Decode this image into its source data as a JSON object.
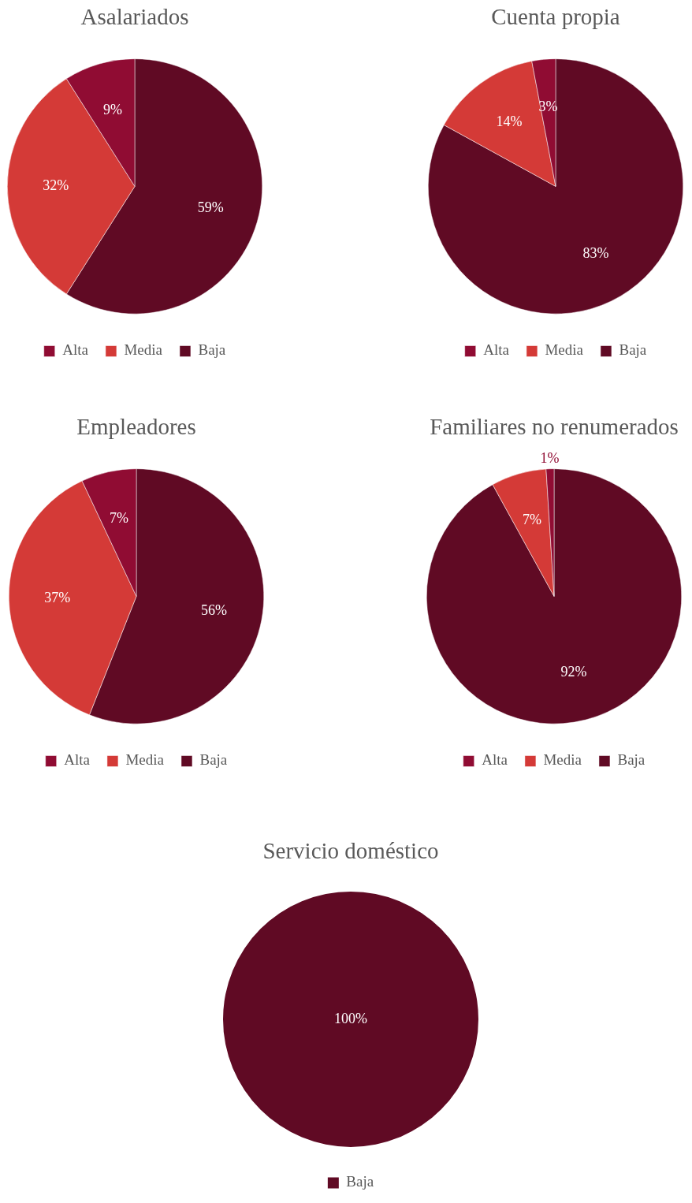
{
  "chart_data": [
    {
      "type": "pie",
      "title": "Asalariados",
      "categories": [
        "Alta",
        "Media",
        "Baja"
      ],
      "values": [
        9,
        32,
        59
      ],
      "colors": [
        "#900c33",
        "#d43a37",
        "#600a24"
      ],
      "value_labels": [
        "9%",
        "32%",
        "59%"
      ],
      "legend": "bottom"
    },
    {
      "type": "pie",
      "title": "Cuenta propia",
      "categories": [
        "Alta",
        "Media",
        "Baja"
      ],
      "values": [
        3,
        14,
        83
      ],
      "colors": [
        "#900c33",
        "#d43a37",
        "#600a24"
      ],
      "value_labels": [
        "3%",
        "14%",
        "83%"
      ],
      "legend": "bottom"
    },
    {
      "type": "pie",
      "title": "Empleadores",
      "categories": [
        "Alta",
        "Media",
        "Baja"
      ],
      "values": [
        7,
        37,
        56
      ],
      "colors": [
        "#900c33",
        "#d43a37",
        "#600a24"
      ],
      "value_labels": [
        "7%",
        "37%",
        "56%"
      ],
      "legend": "bottom"
    },
    {
      "type": "pie",
      "title": "Familiares no renumerados",
      "categories": [
        "Alta",
        "Media",
        "Baja"
      ],
      "values": [
        1,
        7,
        92
      ],
      "colors": [
        "#900c33",
        "#d43a37",
        "#600a24"
      ],
      "value_labels": [
        "1%",
        "7%",
        "92%"
      ],
      "legend": "bottom"
    },
    {
      "type": "pie",
      "title": "Servicio doméstico",
      "categories": [
        "Baja"
      ],
      "values": [
        100
      ],
      "colors": [
        "#600a24"
      ],
      "value_labels": [
        "100%"
      ],
      "legend": "bottom"
    }
  ]
}
